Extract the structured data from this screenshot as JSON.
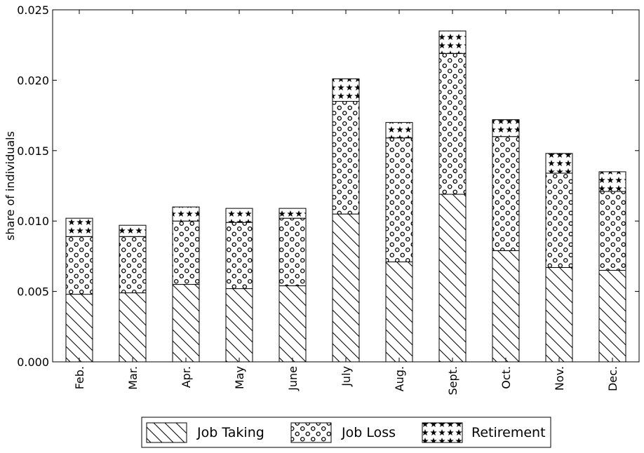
{
  "chart_data": {
    "type": "bar",
    "stacked": true,
    "title": "",
    "xlabel": "",
    "ylabel": "share of individuals",
    "ylim": [
      0,
      0.025
    ],
    "yticks": [
      "0.000",
      "0.005",
      "0.010",
      "0.015",
      "0.020",
      "0.025"
    ],
    "ytick_values": [
      0,
      0.005,
      0.01,
      0.015,
      0.02,
      0.025
    ],
    "categories": [
      "Feb.",
      "Mar.",
      "Apr.",
      "May",
      "June",
      "July",
      "Aug.",
      "Sept.",
      "Oct.",
      "Nov.",
      "Dec."
    ],
    "series": [
      {
        "name": "Job Taking",
        "pattern": "diagonal-hatch",
        "values": [
          0.0048,
          0.0049,
          0.0055,
          0.0052,
          0.0054,
          0.0105,
          0.0071,
          0.0119,
          0.0079,
          0.0067,
          0.0065
        ]
      },
      {
        "name": "Job Loss",
        "pattern": "circles",
        "values": [
          0.0041,
          0.004,
          0.0045,
          0.0047,
          0.0048,
          0.008,
          0.0088,
          0.01,
          0.0081,
          0.0067,
          0.0056
        ]
      },
      {
        "name": "Retirement",
        "pattern": "stars",
        "values": [
          0.0013,
          0.0008,
          0.001,
          0.001,
          0.0007,
          0.0016,
          0.0011,
          0.0016,
          0.0012,
          0.0014,
          0.0014
        ]
      }
    ],
    "grid": false,
    "legend_position": "bottom-center"
  }
}
